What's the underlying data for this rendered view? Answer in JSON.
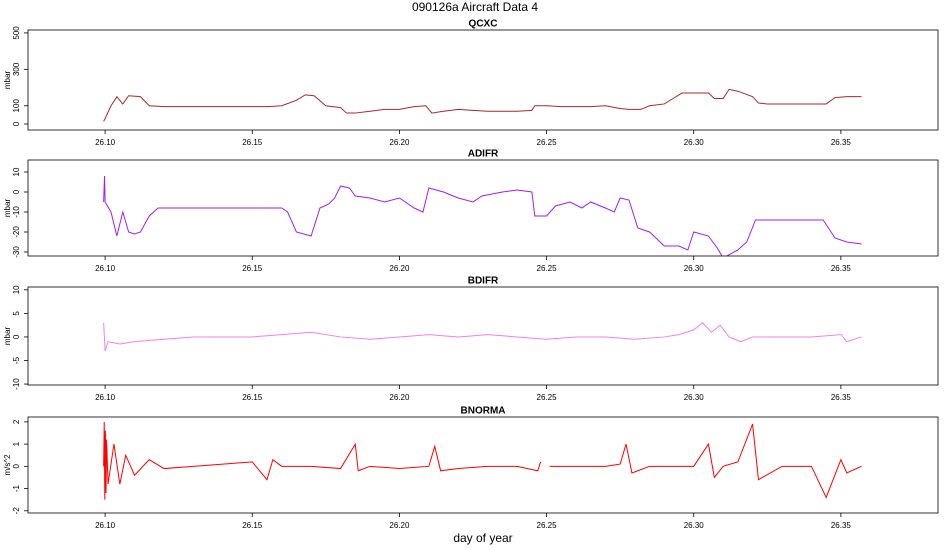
{
  "page_title": "090126a   Aircraft Data 4",
  "chart_data": [
    {
      "type": "line",
      "title": "QCXC",
      "ylabel": "mbar",
      "color": "#a52a2a",
      "xlim": [
        26.0738,
        26.383
      ],
      "ylim": [
        -33,
        516
      ],
      "xticks": [
        {
          "value": 26.1,
          "label": "26.10"
        },
        {
          "value": 26.15,
          "label": "26.15"
        },
        {
          "value": 26.2,
          "label": "26.20"
        },
        {
          "value": 26.25,
          "label": "26.25"
        },
        {
          "value": 26.3,
          "label": "26.30"
        },
        {
          "value": 26.35,
          "label": "26.35"
        }
      ],
      "yticks": [
        0,
        100,
        300,
        500
      ],
      "x": [
        26.0995,
        26.1,
        26.102,
        26.104,
        26.106,
        26.108,
        26.112,
        26.115,
        26.12,
        26.125,
        26.13,
        26.135,
        26.14,
        26.145,
        26.15,
        26.155,
        26.16,
        26.165,
        26.168,
        26.171,
        26.175,
        26.18,
        26.182,
        26.185,
        26.19,
        26.195,
        26.2,
        26.205,
        26.209,
        26.211,
        26.215,
        26.22,
        26.225,
        26.23,
        26.235,
        26.24,
        26.245,
        26.246,
        26.25,
        26.255,
        26.26,
        26.265,
        26.27,
        26.275,
        26.278,
        26.282,
        26.285,
        26.29,
        26.293,
        26.296,
        26.3,
        26.305,
        26.307,
        26.31,
        26.312,
        26.315,
        26.32,
        26.322,
        26.325,
        26.33,
        26.335,
        26.34,
        26.345,
        26.348,
        26.352,
        26.357
      ],
      "values": [
        15,
        30,
        100,
        150,
        110,
        155,
        150,
        100,
        95,
        95,
        95,
        95,
        95,
        95,
        95,
        95,
        100,
        130,
        160,
        155,
        100,
        90,
        60,
        60,
        70,
        80,
        80,
        95,
        100,
        60,
        70,
        80,
        75,
        70,
        70,
        70,
        75,
        100,
        100,
        95,
        95,
        95,
        100,
        85,
        80,
        80,
        100,
        110,
        140,
        170,
        170,
        170,
        140,
        140,
        190,
        180,
        150,
        115,
        110,
        110,
        110,
        110,
        110,
        145,
        150,
        150
      ]
    },
    {
      "type": "line",
      "title": "ADIFR",
      "ylabel": "mbar",
      "color": "#a020f0",
      "xlim": [
        26.0738,
        26.383
      ],
      "ylim": [
        -32,
        16
      ],
      "xticks": [
        {
          "value": 26.1,
          "label": "26.10"
        },
        {
          "value": 26.15,
          "label": "26.15"
        },
        {
          "value": 26.2,
          "label": "26.20"
        },
        {
          "value": 26.25,
          "label": "26.25"
        },
        {
          "value": 26.3,
          "label": "26.30"
        },
        {
          "value": 26.35,
          "label": "26.35"
        }
      ],
      "yticks": [
        -30,
        -20,
        -10,
        0,
        10
      ],
      "x": [
        26.0995,
        26.0998,
        26.1,
        26.102,
        26.104,
        26.106,
        26.108,
        26.11,
        26.112,
        26.115,
        26.118,
        26.125,
        26.13,
        26.14,
        26.15,
        26.16,
        26.162,
        26.165,
        26.17,
        26.173,
        26.176,
        26.178,
        26.18,
        26.183,
        26.185,
        26.19,
        26.195,
        26.2,
        26.205,
        26.208,
        26.21,
        26.215,
        26.22,
        26.225,
        26.228,
        26.235,
        26.24,
        26.245,
        26.246,
        26.25,
        26.253,
        26.258,
        26.262,
        26.265,
        26.27,
        26.273,
        26.275,
        26.278,
        26.281,
        26.285,
        26.29,
        26.295,
        26.298,
        26.3,
        26.305,
        26.308,
        26.31,
        26.315,
        26.318,
        26.321,
        26.325,
        26.33,
        26.34,
        26.344,
        26.348,
        26.352,
        26.357
      ],
      "values": [
        -5,
        8,
        -5,
        -10,
        -22,
        -10,
        -20,
        -21,
        -20,
        -12,
        -8,
        -8,
        -8,
        -8,
        -8,
        -8,
        -10,
        -20,
        -22,
        -8,
        -6,
        -3,
        3,
        2,
        -2,
        -3,
        -5,
        -3,
        -8,
        -10,
        2,
        0,
        -3,
        -5,
        -2,
        0,
        1,
        0,
        -12,
        -12,
        -7,
        -5,
        -8,
        -5,
        -8,
        -10,
        -3,
        -4,
        -18,
        -20,
        -27,
        -27,
        -29,
        -20,
        -22,
        -28,
        -33,
        -29,
        -25,
        -14,
        -14,
        -14,
        -14,
        -14,
        -23,
        -25,
        -26
      ]
    },
    {
      "type": "line",
      "title": "BDIFR",
      "ylabel": "mbar",
      "color": "#ee82ee",
      "xlim": [
        26.0738,
        26.383
      ],
      "ylim": [
        -10.2,
        10.6
      ],
      "xticks": [
        {
          "value": 26.1,
          "label": "26.10"
        },
        {
          "value": 26.15,
          "label": "26.15"
        },
        {
          "value": 26.2,
          "label": "26.20"
        },
        {
          "value": 26.25,
          "label": "26.25"
        },
        {
          "value": 26.3,
          "label": "26.30"
        },
        {
          "value": 26.35,
          "label": "26.35"
        }
      ],
      "yticks": [
        -10,
        -5,
        0,
        5,
        10
      ],
      "x": [
        26.0995,
        26.1,
        26.101,
        26.105,
        26.11,
        26.12,
        26.13,
        26.14,
        26.15,
        26.16,
        26.17,
        26.18,
        26.19,
        26.2,
        26.21,
        26.22,
        26.23,
        26.24,
        26.25,
        26.26,
        26.27,
        26.28,
        26.29,
        26.295,
        26.3,
        26.303,
        26.306,
        26.309,
        26.312,
        26.316,
        26.32,
        26.33,
        26.34,
        26.35,
        26.352,
        26.357
      ],
      "values": [
        3,
        -3,
        -1,
        -1.5,
        -1,
        -0.5,
        0,
        0,
        0,
        0.5,
        1,
        0,
        -0.5,
        0,
        0.5,
        0,
        0.5,
        0,
        -0.5,
        0,
        0,
        -0.5,
        0,
        0.5,
        1.5,
        3,
        1,
        2.5,
        0,
        -1,
        0,
        0,
        0,
        0.5,
        -1,
        0
      ]
    },
    {
      "type": "line",
      "title": "BNORMA",
      "ylabel": "m/s^2",
      "xlabel": "day of year",
      "color": "#ff0000",
      "xlim": [
        26.0738,
        26.383
      ],
      "ylim": [
        -2.1,
        2.22
      ],
      "xticks": [
        {
          "value": 26.1,
          "label": "26.10"
        },
        {
          "value": 26.15,
          "label": "26.15"
        },
        {
          "value": 26.2,
          "label": "26.20"
        },
        {
          "value": 26.25,
          "label": "26.25"
        },
        {
          "value": 26.3,
          "label": "26.30"
        },
        {
          "value": 26.35,
          "label": "26.35"
        }
      ],
      "yticks": [
        -2,
        -1,
        0,
        1,
        2
      ],
      "x": [
        26.0995,
        26.0997,
        26.0999,
        26.1001,
        26.1003,
        26.1005,
        26.101,
        26.103,
        26.105,
        26.107,
        26.11,
        26.115,
        26.12,
        26.13,
        26.14,
        26.15,
        26.155,
        26.157,
        26.16,
        26.17,
        26.18,
        26.185,
        26.186,
        26.19,
        26.2,
        26.21,
        26.212,
        26.214,
        26.22,
        26.23,
        26.24,
        26.247,
        26.248,
        26.25,
        26.251,
        26.26,
        26.27,
        26.275,
        26.277,
        26.279,
        26.285,
        26.29,
        26.3,
        26.305,
        26.307,
        26.31,
        26.315,
        26.32,
        26.322,
        26.33,
        26.34,
        26.345,
        26.35,
        26.352,
        26.357
      ],
      "values": [
        0,
        2,
        -1.5,
        1.6,
        -1.2,
        1.2,
        -0.8,
        1,
        -0.8,
        0.5,
        -0.4,
        0.3,
        -0.1,
        0,
        0.1,
        0.2,
        -0.6,
        0.3,
        0,
        0,
        -0.1,
        1,
        -0.2,
        0,
        -0.1,
        0,
        0.9,
        -0.2,
        -0.1,
        0,
        0,
        -0.2,
        0.2,
        null,
        0,
        0,
        0,
        0.1,
        1,
        -0.3,
        0,
        0,
        0,
        1,
        -0.5,
        0,
        0.2,
        1.9,
        -0.6,
        0,
        0,
        -1.4,
        0.3,
        -0.3,
        0
      ]
    }
  ]
}
